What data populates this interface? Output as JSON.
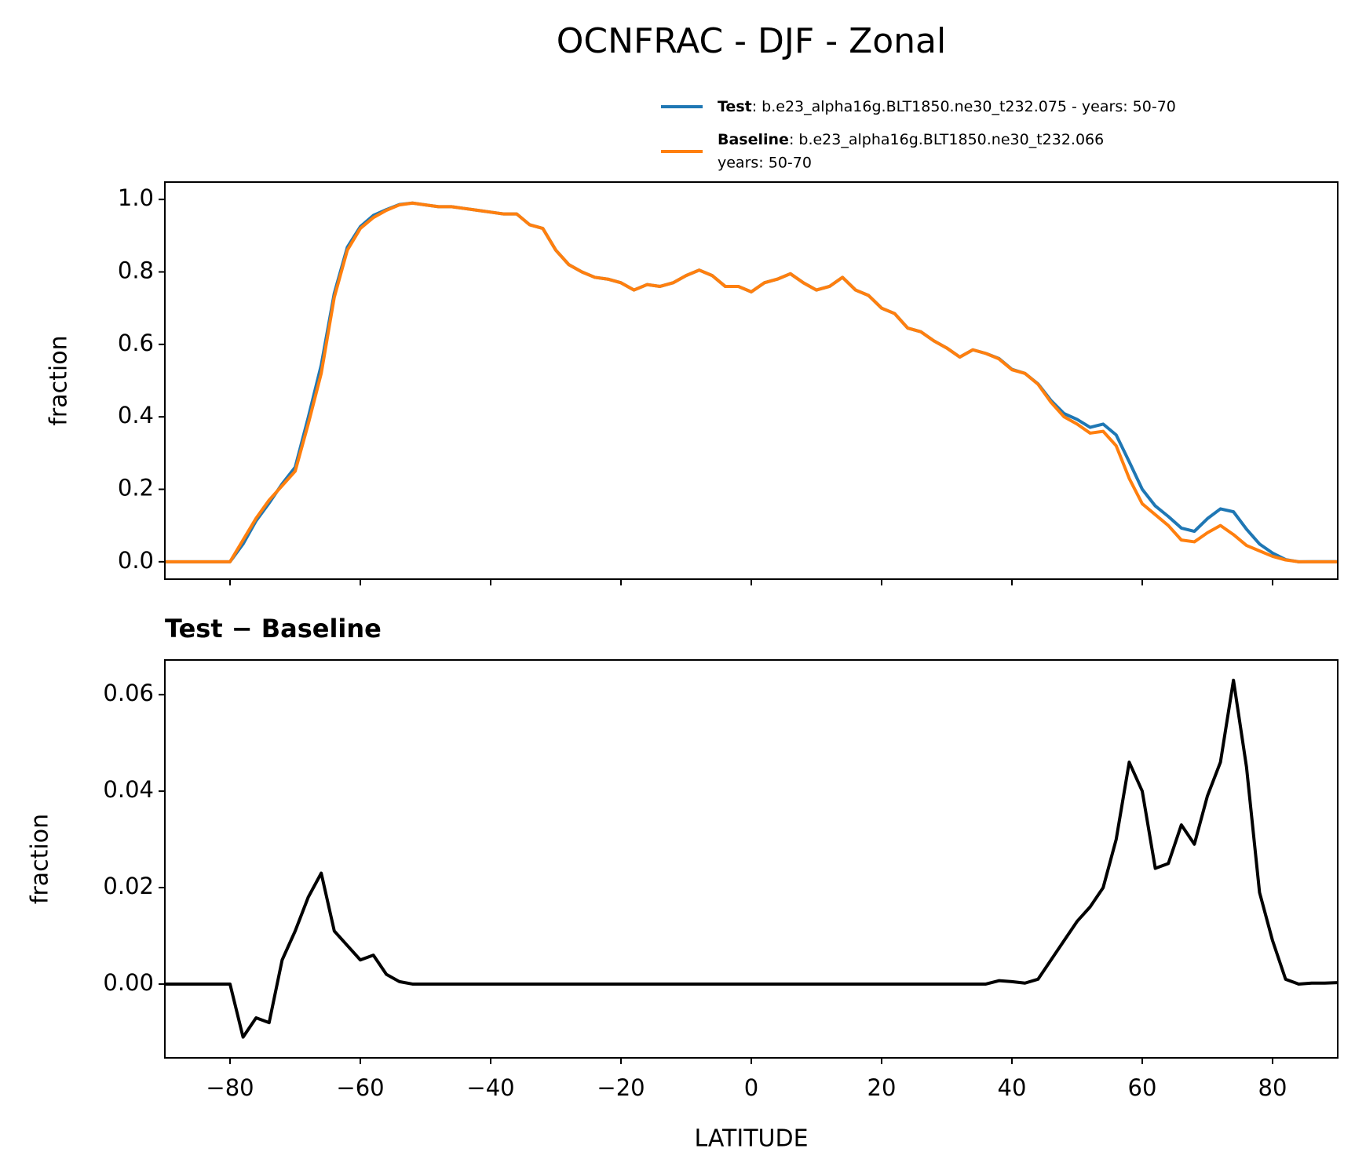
{
  "chart_data": [
    {
      "type": "line",
      "title": "OCNFRAC - DJF - Zonal",
      "ylabel": "fraction",
      "x": [
        -90,
        -88,
        -86,
        -84,
        -82,
        -80,
        -78,
        -76,
        -74,
        -72,
        -70,
        -68,
        -66,
        -64,
        -62,
        -60,
        -58,
        -56,
        -54,
        -52,
        -50,
        -48,
        -46,
        -44,
        -42,
        -40,
        -38,
        -36,
        -34,
        -32,
        -30,
        -28,
        -26,
        -24,
        -22,
        -20,
        -18,
        -16,
        -14,
        -12,
        -10,
        -8,
        -6,
        -4,
        -2,
        0,
        2,
        4,
        6,
        8,
        10,
        12,
        14,
        16,
        18,
        20,
        22,
        24,
        26,
        28,
        30,
        32,
        34,
        36,
        38,
        40,
        42,
        44,
        46,
        48,
        50,
        52,
        54,
        56,
        58,
        60,
        62,
        64,
        66,
        68,
        70,
        72,
        74,
        76,
        78,
        80,
        82,
        84,
        86,
        88,
        90
      ],
      "series": [
        {
          "name": "Test",
          "description": [
            ": b.e23_alpha16g.BLT1850.ne30_t232.075 - years: 50-70"
          ],
          "color": "#1f77b4",
          "values": [
            0,
            0,
            0,
            0,
            0,
            0,
            0.049,
            0.113,
            0.162,
            0.215,
            0.261,
            0.398,
            0.543,
            0.741,
            0.868,
            0.925,
            0.956,
            0.972,
            0.986,
            0.99,
            0.985,
            0.98,
            0.98,
            0.975,
            0.97,
            0.965,
            0.96,
            0.96,
            0.93,
            0.92,
            0.86,
            0.82,
            0.8,
            0.785,
            0.78,
            0.77,
            0.75,
            0.765,
            0.76,
            0.77,
            0.79,
            0.805,
            0.79,
            0.76,
            0.76,
            0.745,
            0.77,
            0.78,
            0.795,
            0.77,
            0.75,
            0.76,
            0.785,
            0.75,
            0.735,
            0.7,
            0.685,
            0.645,
            0.635,
            0.61,
            0.59,
            0.565,
            0.585,
            0.575,
            0.561,
            0.531,
            0.52,
            0.491,
            0.445,
            0.409,
            0.393,
            0.371,
            0.38,
            0.35,
            0.276,
            0.2,
            0.154,
            0.125,
            0.093,
            0.084,
            0.119,
            0.146,
            0.138,
            0.09,
            0.049,
            0.024,
            0.006,
            0,
            0.0002,
            0.0002,
            0.0003
          ]
        },
        {
          "name": "Baseline",
          "description": [
            ": b.e23_alpha16g.BLT1850.ne30_t232.066",
            "years: 50-70"
          ],
          "color": "#ff7f0e",
          "values": [
            0,
            0,
            0,
            0,
            0,
            0,
            0.06,
            0.12,
            0.17,
            0.21,
            0.25,
            0.38,
            0.52,
            0.73,
            0.86,
            0.92,
            0.95,
            0.97,
            0.985,
            0.99,
            0.985,
            0.98,
            0.98,
            0.975,
            0.97,
            0.965,
            0.96,
            0.96,
            0.93,
            0.92,
            0.86,
            0.82,
            0.8,
            0.785,
            0.78,
            0.77,
            0.75,
            0.765,
            0.76,
            0.77,
            0.79,
            0.805,
            0.79,
            0.76,
            0.76,
            0.745,
            0.77,
            0.78,
            0.795,
            0.77,
            0.75,
            0.76,
            0.785,
            0.75,
            0.735,
            0.7,
            0.685,
            0.645,
            0.635,
            0.61,
            0.59,
            0.565,
            0.585,
            0.575,
            0.56,
            0.53,
            0.52,
            0.49,
            0.44,
            0.4,
            0.38,
            0.355,
            0.36,
            0.32,
            0.23,
            0.16,
            0.13,
            0.1,
            0.06,
            0.055,
            0.08,
            0.1,
            0.075,
            0.045,
            0.03,
            0.015,
            0.005,
            0,
            0,
            0,
            0
          ]
        }
      ],
      "xlim": [
        -90,
        90
      ],
      "xticks": [
        {
          "value": -80,
          "label": "−80"
        },
        {
          "value": -60,
          "label": "−60"
        },
        {
          "value": -40,
          "label": "−40"
        },
        {
          "value": -20,
          "label": "−20"
        },
        0,
        20,
        40,
        60,
        80
      ],
      "ylim": [
        -0.048,
        1.048
      ],
      "yticks": [
        {
          "value": 0,
          "label": "0.0"
        },
        0.2,
        0.4,
        0.6,
        0.8,
        {
          "value": 1,
          "label": "1.0"
        }
      ]
    },
    {
      "type": "line",
      "subtitle": "Test − Baseline",
      "ylabel": "fraction",
      "xlabel": "LATITUDE",
      "color": "#000000",
      "x": [
        -90,
        -88,
        -86,
        -84,
        -82,
        -80,
        -78,
        -76,
        -74,
        -72,
        -70,
        -68,
        -66,
        -64,
        -62,
        -60,
        -58,
        -56,
        -54,
        -52,
        -50,
        -48,
        -46,
        -44,
        -42,
        -40,
        -38,
        -36,
        -34,
        -32,
        -30,
        -28,
        -26,
        -24,
        -22,
        -20,
        -18,
        -16,
        -14,
        -12,
        -10,
        -8,
        -6,
        -4,
        -2,
        0,
        2,
        4,
        6,
        8,
        10,
        12,
        14,
        16,
        18,
        20,
        22,
        24,
        26,
        28,
        30,
        32,
        34,
        36,
        38,
        40,
        42,
        44,
        46,
        48,
        50,
        52,
        54,
        56,
        58,
        60,
        62,
        64,
        66,
        68,
        70,
        72,
        74,
        76,
        78,
        80,
        82,
        84,
        86,
        88,
        90
      ],
      "values": [
        0,
        0,
        0,
        0,
        0,
        0,
        -0.011,
        -0.007,
        -0.008,
        0.005,
        0.011,
        0.018,
        0.023,
        0.011,
        0.008,
        0.005,
        0.006,
        0.002,
        0.0005,
        0,
        0,
        0,
        0,
        0,
        0,
        0,
        0,
        0,
        0,
        0,
        0,
        0,
        0,
        0,
        0,
        0,
        0,
        0,
        0,
        0,
        0,
        0,
        0,
        0,
        0,
        0,
        0,
        0,
        0,
        0,
        0,
        0,
        0,
        0,
        0,
        0,
        0,
        0,
        0,
        0,
        0,
        0,
        0,
        0,
        0.0007,
        0.0005,
        0.0002,
        0.001,
        0.005,
        0.009,
        0.013,
        0.016,
        0.02,
        0.03,
        0.046,
        0.04,
        0.024,
        0.025,
        0.033,
        0.029,
        0.039,
        0.046,
        0.063,
        0.045,
        0.019,
        0.009,
        0.001,
        0,
        0.0002,
        0.0002,
        0.0003
      ],
      "xlim": [
        -90,
        90
      ],
      "xticks": [
        {
          "value": -80,
          "label": "−80"
        },
        {
          "value": -60,
          "label": "−60"
        },
        {
          "value": -40,
          "label": "−40"
        },
        {
          "value": -20,
          "label": "−20"
        },
        0,
        20,
        40,
        60,
        80
      ],
      "ylim": [
        -0.0153,
        0.0672
      ],
      "yticks": [
        {
          "value": 0,
          "label": "0.00"
        },
        {
          "value": 0.02,
          "label": "0.02"
        },
        {
          "value": 0.04,
          "label": "0.04"
        },
        {
          "value": 0.06,
          "label": "0.06"
        }
      ]
    }
  ]
}
